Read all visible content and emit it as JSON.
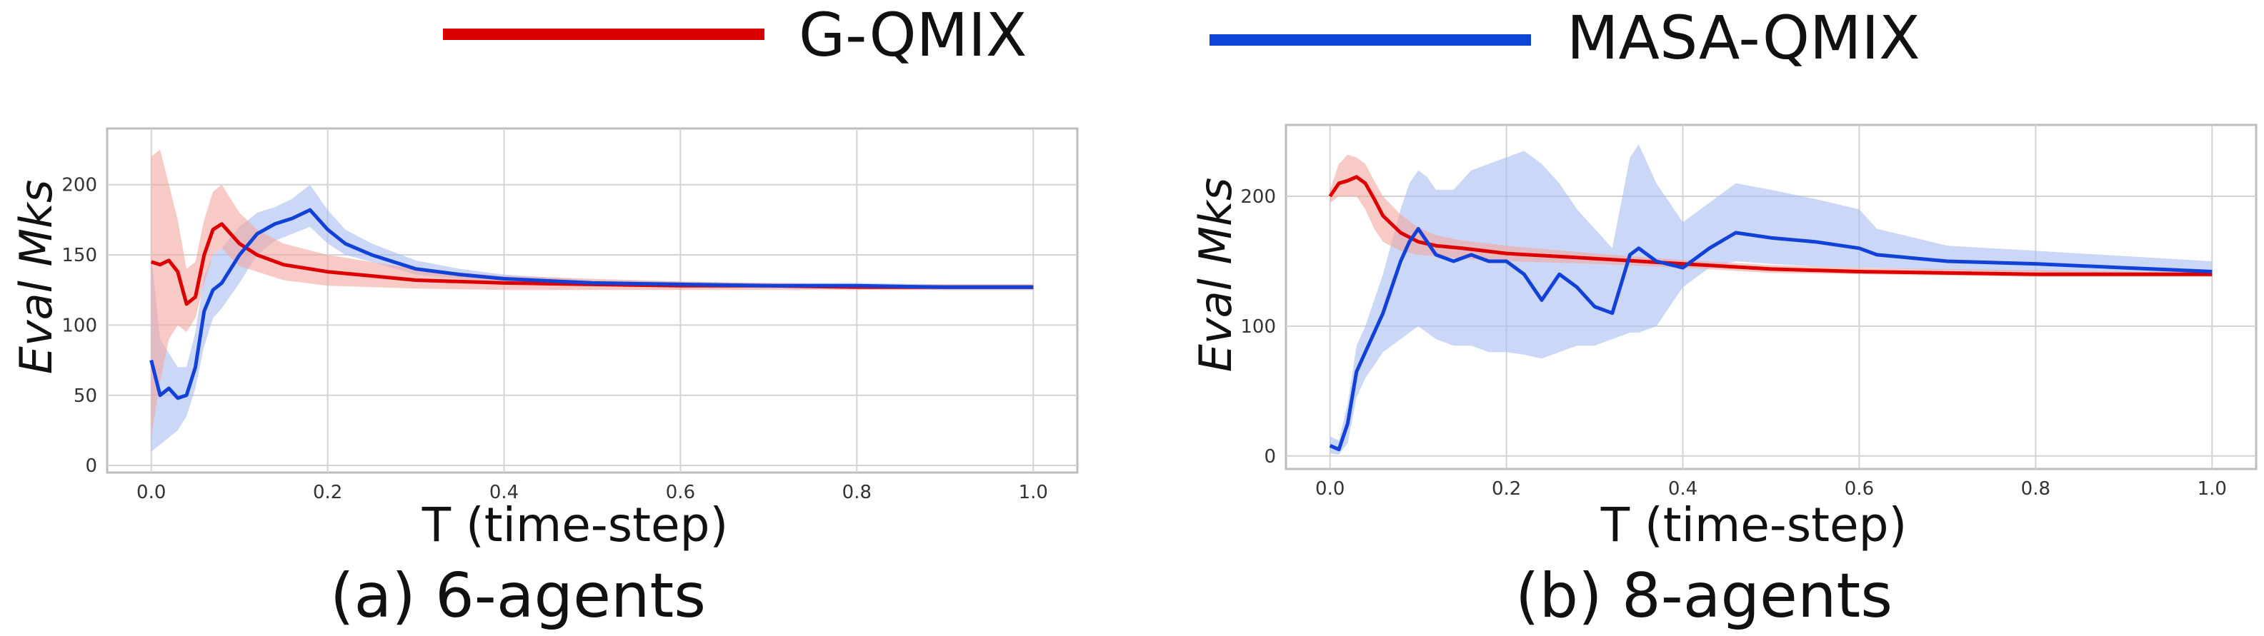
{
  "legend": {
    "items": [
      {
        "label": "G-QMIX",
        "color": "#dd0000"
      },
      {
        "label": "MASA-QMIX",
        "color": "#0b46d6"
      }
    ]
  },
  "colors": {
    "gqmix_line": "#dd0000",
    "gqmix_band": "#f4a7a0",
    "masa_line": "#1141d6",
    "masa_band": "#a9bdf0",
    "grid": "#d3d3d3",
    "axes": "#bdbdbd"
  },
  "chart_data": [
    {
      "type": "line",
      "caption": "(a) 6-agents",
      "xlabel": "T (time-step)",
      "ylabel": "Eval Mks",
      "xlim": [
        -0.05,
        1.05
      ],
      "ylim": [
        -5,
        240
      ],
      "xticks": [
        0.0,
        0.2,
        0.4,
        0.6,
        0.8,
        1.0
      ],
      "xtick_labels": [
        "0.0",
        "0.2",
        "0.4",
        "0.6",
        "0.8",
        "1.0"
      ],
      "yticks": [
        0,
        50,
        100,
        150,
        200
      ],
      "ytick_labels": [
        "0",
        "50",
        "100",
        "150",
        "200"
      ],
      "grid": true,
      "series": [
        {
          "name": "G-QMIX",
          "x": [
            0.0,
            0.01,
            0.02,
            0.03,
            0.04,
            0.05,
            0.06,
            0.07,
            0.08,
            0.09,
            0.1,
            0.12,
            0.15,
            0.2,
            0.3,
            0.4,
            0.5,
            0.6,
            0.7,
            0.8,
            0.9,
            1.0
          ],
          "y": [
            145,
            143,
            146,
            138,
            115,
            120,
            150,
            168,
            172,
            165,
            158,
            150,
            143,
            138,
            132,
            130,
            129,
            128,
            128,
            127,
            127,
            127
          ],
          "lower": [
            20,
            60,
            90,
            100,
            95,
            105,
            130,
            150,
            155,
            148,
            142,
            138,
            132,
            128,
            126,
            125,
            125,
            125,
            125,
            125,
            125,
            125
          ],
          "upper": [
            220,
            225,
            200,
            175,
            140,
            145,
            175,
            195,
            200,
            190,
            180,
            168,
            158,
            150,
            140,
            135,
            133,
            131,
            130,
            129,
            129,
            129
          ]
        },
        {
          "name": "MASA-QMIX",
          "x": [
            0.0,
            0.01,
            0.02,
            0.03,
            0.04,
            0.05,
            0.06,
            0.07,
            0.08,
            0.1,
            0.12,
            0.14,
            0.16,
            0.18,
            0.2,
            0.22,
            0.25,
            0.3,
            0.35,
            0.4,
            0.5,
            0.6,
            0.7,
            0.8,
            0.9,
            1.0
          ],
          "y": [
            75,
            50,
            55,
            48,
            50,
            70,
            110,
            125,
            130,
            150,
            165,
            172,
            176,
            182,
            168,
            158,
            150,
            140,
            136,
            133,
            130,
            129,
            128,
            128,
            127,
            127
          ],
          "lower": [
            10,
            15,
            20,
            25,
            35,
            55,
            85,
            105,
            112,
            130,
            150,
            160,
            165,
            170,
            158,
            150,
            145,
            136,
            133,
            131,
            128,
            127,
            126,
            126,
            125,
            125
          ],
          "upper": [
            150,
            90,
            80,
            70,
            70,
            95,
            135,
            150,
            155,
            170,
            180,
            184,
            190,
            200,
            182,
            168,
            158,
            146,
            140,
            136,
            132,
            131,
            130,
            130,
            129,
            129
          ]
        }
      ]
    },
    {
      "type": "line",
      "caption": "(b) 8-agents",
      "xlabel": "T (time-step)",
      "ylabel": "Eval Mks",
      "xlim": [
        -0.05,
        1.05
      ],
      "ylim": [
        -10,
        255
      ],
      "xticks": [
        0.0,
        0.2,
        0.4,
        0.6,
        0.8,
        1.0
      ],
      "xtick_labels": [
        "0.0",
        "0.2",
        "0.4",
        "0.6",
        "0.8",
        "1.0"
      ],
      "yticks": [
        0,
        100,
        200
      ],
      "ytick_labels": [
        "0",
        "100",
        "200"
      ],
      "grid": true,
      "series": [
        {
          "name": "G-QMIX",
          "x": [
            0.0,
            0.01,
            0.02,
            0.03,
            0.04,
            0.05,
            0.06,
            0.08,
            0.1,
            0.12,
            0.15,
            0.2,
            0.3,
            0.4,
            0.5,
            0.6,
            0.7,
            0.8,
            0.9,
            1.0
          ],
          "y": [
            200,
            210,
            212,
            215,
            210,
            198,
            185,
            172,
            165,
            162,
            160,
            156,
            152,
            148,
            144,
            142,
            141,
            140,
            140,
            140
          ],
          "lower": [
            195,
            200,
            200,
            200,
            190,
            175,
            165,
            158,
            155,
            154,
            152,
            150,
            148,
            145,
            141,
            140,
            139,
            138,
            138,
            138
          ],
          "upper": [
            205,
            225,
            232,
            230,
            225,
            212,
            200,
            186,
            176,
            170,
            166,
            162,
            156,
            151,
            147,
            145,
            144,
            143,
            142,
            142
          ]
        },
        {
          "name": "MASA-QMIX",
          "x": [
            0.0,
            0.01,
            0.02,
            0.03,
            0.04,
            0.05,
            0.06,
            0.07,
            0.08,
            0.09,
            0.1,
            0.11,
            0.12,
            0.14,
            0.16,
            0.18,
            0.2,
            0.22,
            0.24,
            0.26,
            0.28,
            0.3,
            0.32,
            0.34,
            0.35,
            0.37,
            0.4,
            0.43,
            0.46,
            0.5,
            0.55,
            0.6,
            0.62,
            0.7,
            0.8,
            0.9,
            1.0
          ],
          "y": [
            8,
            5,
            25,
            65,
            80,
            95,
            110,
            130,
            150,
            165,
            175,
            165,
            155,
            150,
            155,
            150,
            150,
            140,
            120,
            140,
            130,
            115,
            110,
            155,
            160,
            150,
            145,
            160,
            172,
            168,
            165,
            160,
            155,
            150,
            148,
            145,
            142
          ],
          "lower": [
            2,
            1,
            10,
            45,
            60,
            70,
            80,
            85,
            90,
            95,
            100,
            95,
            90,
            85,
            85,
            80,
            80,
            78,
            75,
            80,
            85,
            85,
            90,
            95,
            95,
            100,
            130,
            145,
            150,
            148,
            146,
            145,
            145,
            143,
            142,
            140,
            138
          ],
          "upper": [
            15,
            12,
            40,
            85,
            100,
            120,
            140,
            165,
            190,
            210,
            220,
            215,
            205,
            205,
            220,
            225,
            230,
            235,
            225,
            210,
            190,
            175,
            160,
            230,
            240,
            210,
            180,
            195,
            210,
            205,
            198,
            190,
            175,
            162,
            158,
            154,
            150
          ]
        }
      ]
    }
  ]
}
